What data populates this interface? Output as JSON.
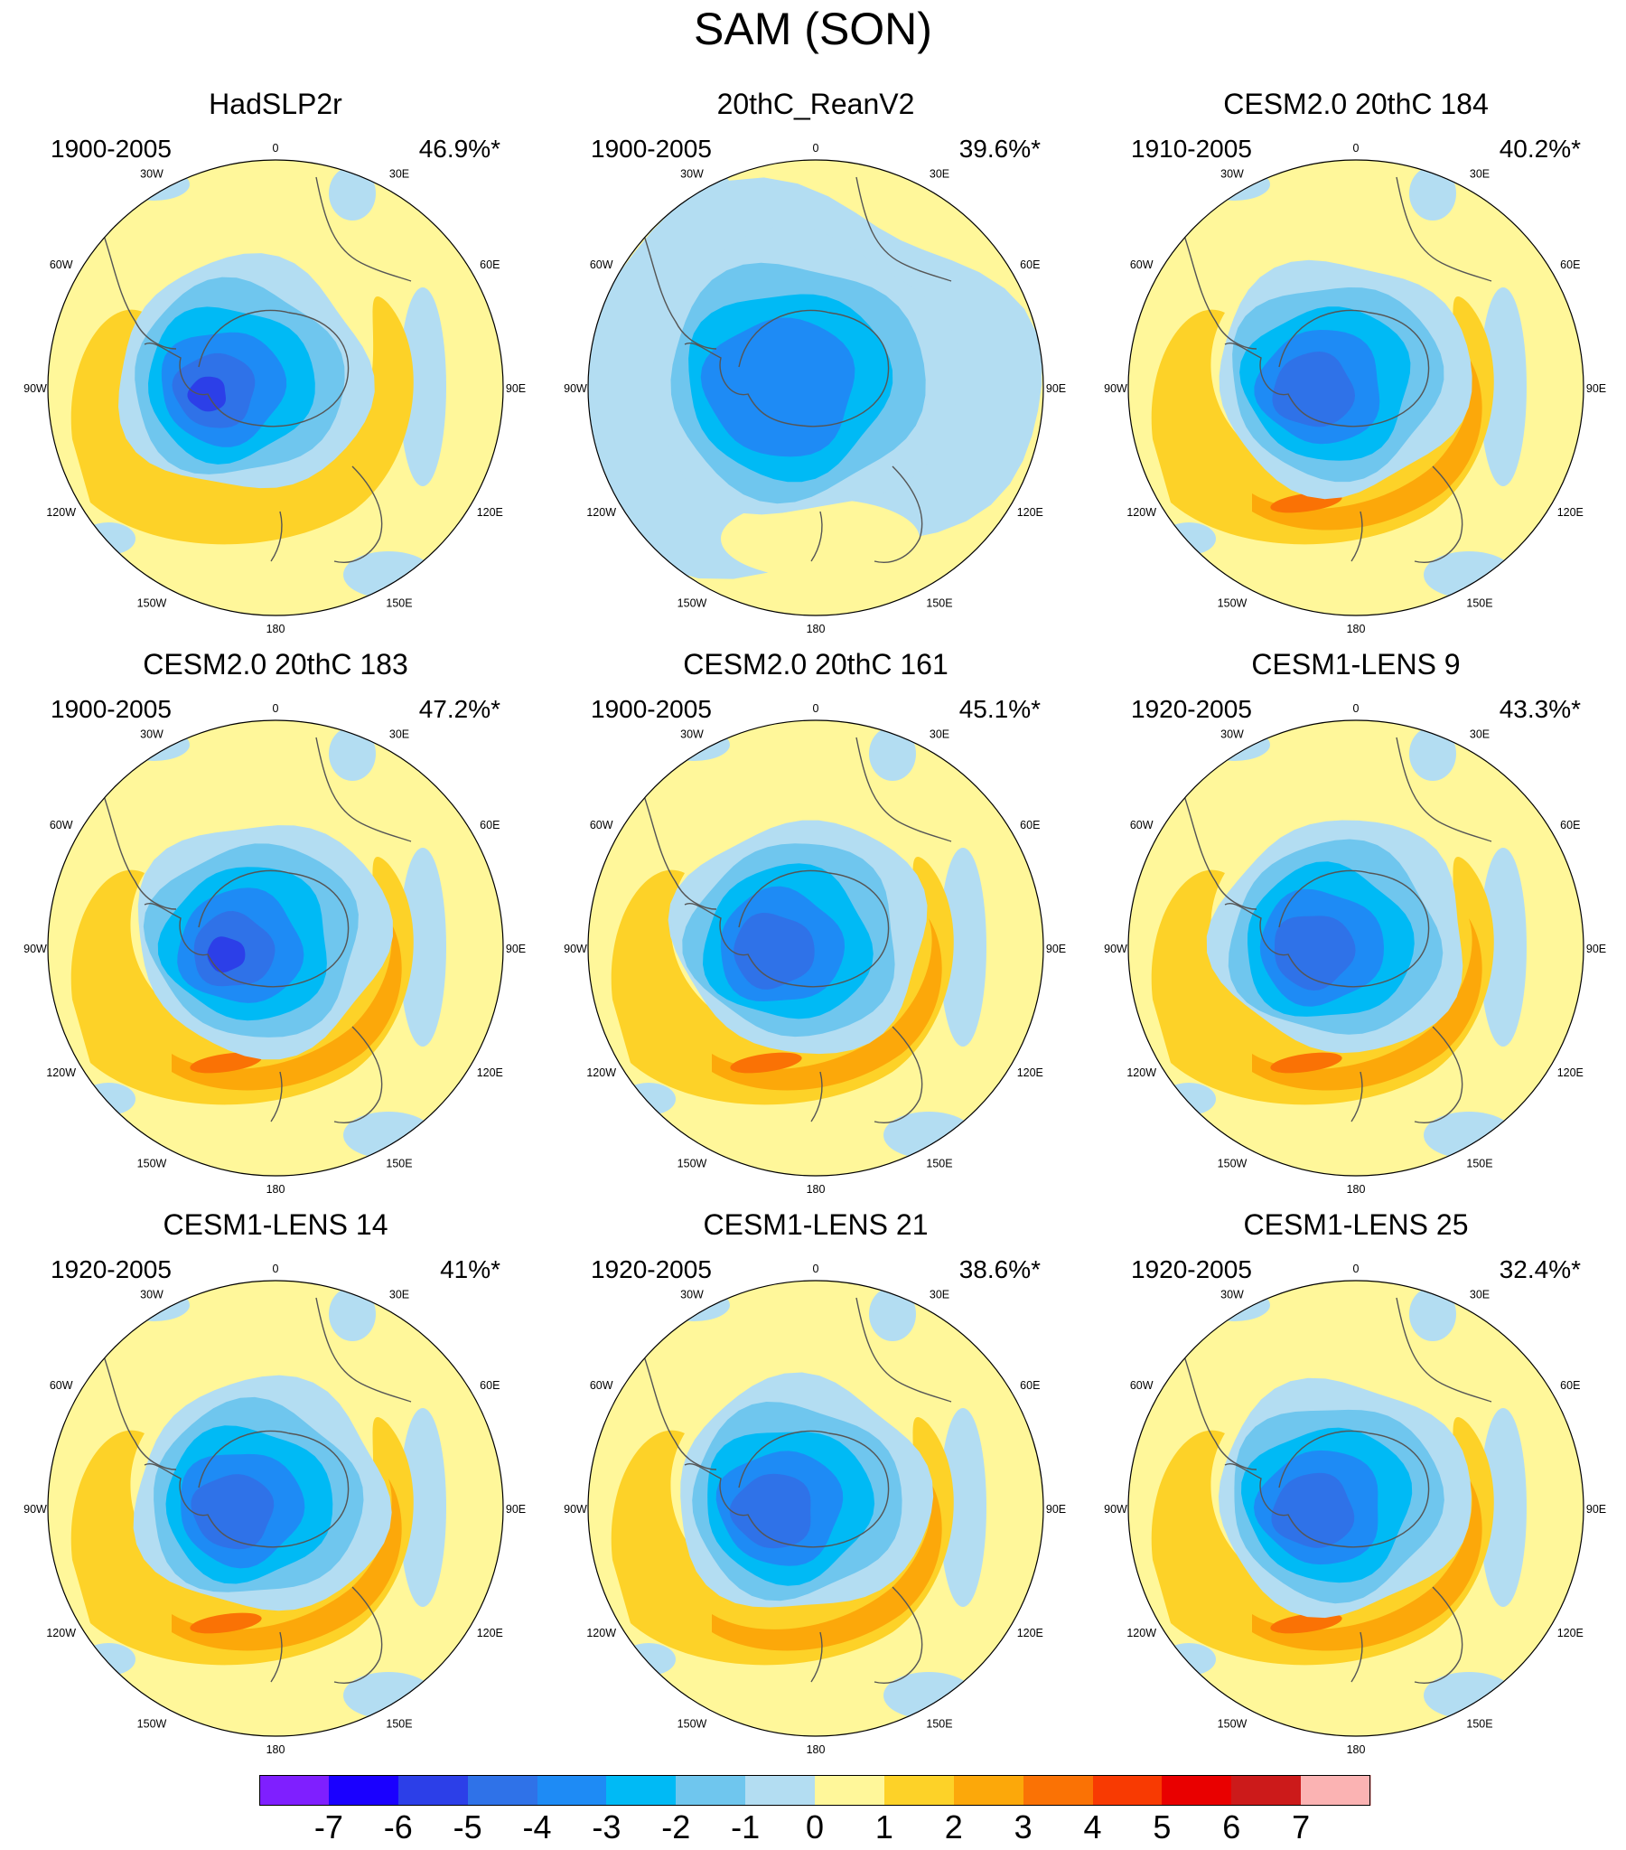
{
  "title": "SAM (SON)",
  "longitude_labels": [
    "0",
    "30E",
    "60E",
    "90E",
    "120E",
    "150E",
    "180",
    "150W",
    "120W",
    "90W",
    "60W",
    "30W"
  ],
  "panels": [
    {
      "id": "hadslp2r",
      "title": "HadSLP2r",
      "period": "1900-2005",
      "variance": "46.9%*",
      "center_min": -6,
      "ring_max": 1
    },
    {
      "id": "20thc-reanv2",
      "title": "20thC_ReanV2",
      "period": "1900-2005",
      "variance": "39.6%*",
      "center_min": -4,
      "ring_max": 0
    },
    {
      "id": "cesm2-184",
      "title": "CESM2.0 20thC 184",
      "period": "1910-2005",
      "variance": "40.2%*",
      "center_min": -5,
      "ring_max": 3
    },
    {
      "id": "cesm2-183",
      "title": "CESM2.0 20thC 183",
      "period": "1900-2005",
      "variance": "47.2%*",
      "center_min": -6,
      "ring_max": 3
    },
    {
      "id": "cesm2-161",
      "title": "CESM2.0 20thC 161",
      "period": "1900-2005",
      "variance": "45.1%*",
      "center_min": -5,
      "ring_max": 3
    },
    {
      "id": "cesm1-lens-9",
      "title": "CESM1-LENS 9",
      "period": "1920-2005",
      "variance": "43.3%*",
      "center_min": -5,
      "ring_max": 3
    },
    {
      "id": "cesm1-lens-14",
      "title": "CESM1-LENS 14",
      "period": "1920-2005",
      "variance": "41%*",
      "center_min": -5,
      "ring_max": 3
    },
    {
      "id": "cesm1-lens-21",
      "title": "CESM1-LENS 21",
      "period": "1920-2005",
      "variance": "38.6%*",
      "center_min": -5,
      "ring_max": 2
    },
    {
      "id": "cesm1-lens-25",
      "title": "CESM1-LENS 25",
      "period": "1920-2005",
      "variance": "32.4%*",
      "center_min": -5,
      "ring_max": 3
    }
  ],
  "colorbar": {
    "labels": [
      "-7",
      "-6",
      "-5",
      "-4",
      "-3",
      "-2",
      "-1",
      "0",
      "1",
      "2",
      "3",
      "4",
      "5",
      "6",
      "7"
    ],
    "colors": [
      "#7f1fff",
      "#1a00ff",
      "#2c3fe8",
      "#2f72e8",
      "#1e8bf5",
      "#00baf5",
      "#6fc6ee",
      "#b3ddf2",
      "#fff79a",
      "#fdd228",
      "#fca80a",
      "#fa7205",
      "#f83a02",
      "#e90000",
      "#cc1a1a",
      "#fbb3b3"
    ]
  },
  "contour_colors": {
    "-6": "#2c3fe8",
    "-5": "#2f72e8",
    "-4": "#1e8bf5",
    "-3": "#00baf5",
    "-2": "#6fc6ee",
    "-1": "#b3ddf2",
    "0": "#fff79a",
    "1": "#fdd228",
    "2": "#fca80a",
    "3": "#fa7205"
  }
}
